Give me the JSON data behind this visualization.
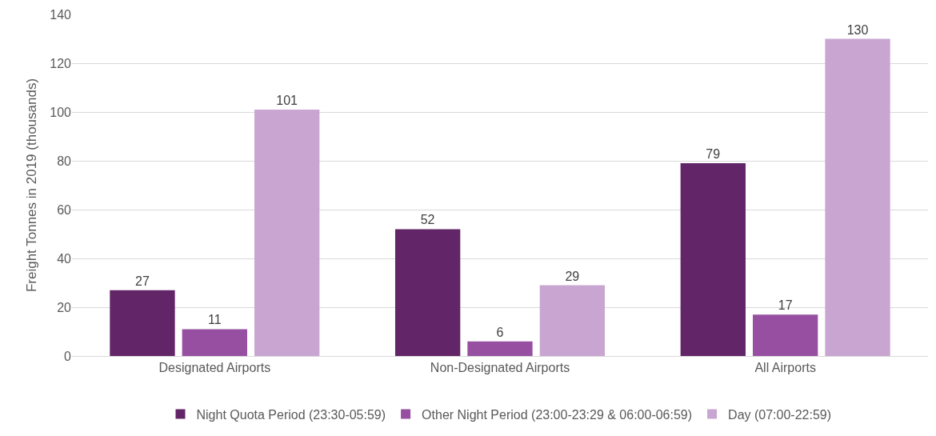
{
  "chart_data": {
    "type": "bar",
    "ylabel": "Freight Tonnes in 2019 (thousands)",
    "categories": [
      "Designated Airports",
      "Non-Designated Airports",
      "All Airports"
    ],
    "series": [
      {
        "name": "Night Quota Period (23:30-05:59)",
        "color": "#622567",
        "values": [
          27,
          52,
          79
        ]
      },
      {
        "name": "Other Night Period (23:00-23:29 & 06:00-06:59)",
        "color": "#9750a1",
        "values": [
          11,
          6,
          17
        ]
      },
      {
        "name": "Day (07:00-22:59)",
        "color": "#c9a6d2",
        "values": [
          101,
          29,
          130
        ]
      }
    ],
    "ylim": [
      0,
      140
    ],
    "yticks": [
      0,
      20,
      40,
      60,
      80,
      100,
      120,
      140
    ],
    "grid": "y",
    "legend": "bottom",
    "data_labels": true
  }
}
